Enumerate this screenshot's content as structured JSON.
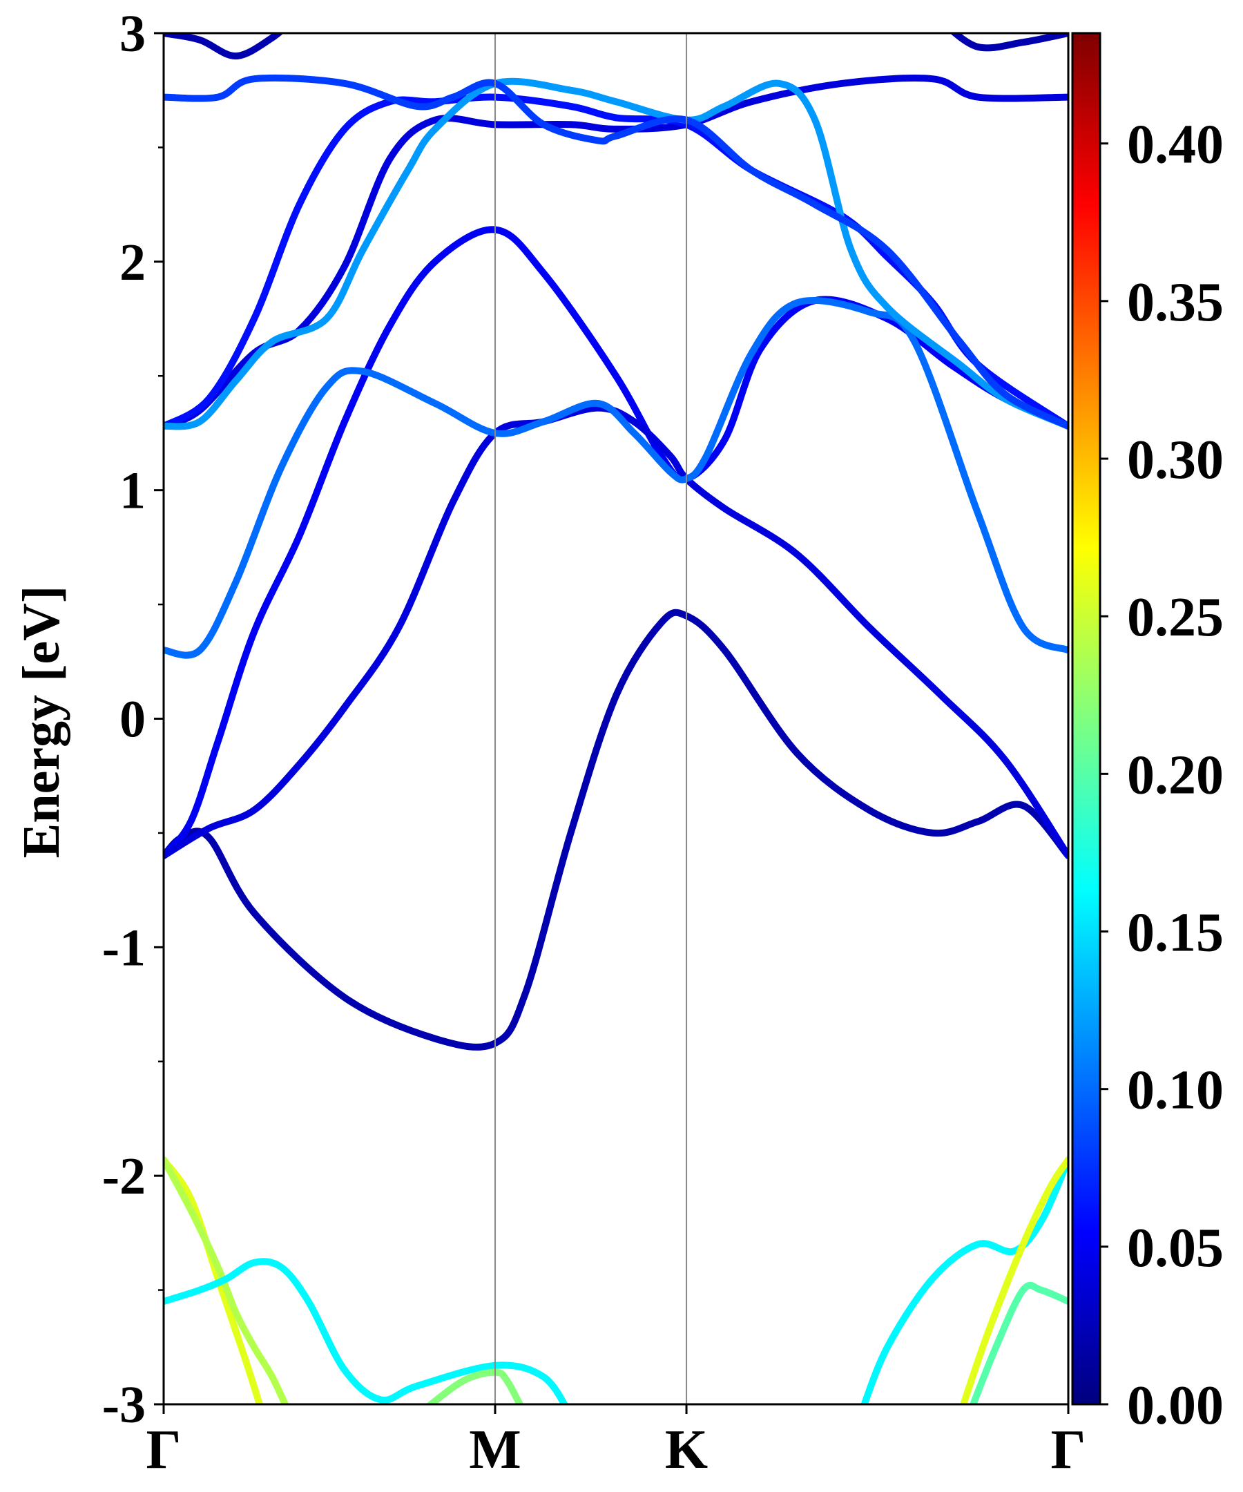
{
  "chart_data": {
    "type": "line",
    "title": "",
    "ylabel": "Energy [eV]",
    "xlabel": "",
    "ylim": [
      -3,
      3
    ],
    "xlim": [
      0,
      1
    ],
    "high_symmetry_points": [
      {
        "label": "Γ",
        "x": 0.0
      },
      {
        "label": "M",
        "x": 0.3664
      },
      {
        "label": "K",
        "x": 0.5779
      },
      {
        "label": "Γ",
        "x": 1.0
      }
    ],
    "yticks": [
      {
        "value": -3,
        "label": "-3"
      },
      {
        "value": -2,
        "label": "-2"
      },
      {
        "value": -1,
        "label": "-1"
      },
      {
        "value": 0,
        "label": "0"
      },
      {
        "value": 1,
        "label": "1"
      },
      {
        "value": 2,
        "label": "2"
      },
      {
        "value": 3,
        "label": "3"
      }
    ],
    "colorbar": {
      "colormap": "jet",
      "range": [
        0.0,
        0.435
      ],
      "ticks": [
        {
          "value": 0.0,
          "label": "0.00"
        },
        {
          "value": 0.05,
          "label": "0.05"
        },
        {
          "value": 0.1,
          "label": "0.10"
        },
        {
          "value": 0.15,
          "label": "0.15"
        },
        {
          "value": 0.2,
          "label": "0.20"
        },
        {
          "value": 0.25,
          "label": "0.25"
        },
        {
          "value": 0.3,
          "label": "0.30"
        },
        {
          "value": 0.35,
          "label": "0.35"
        },
        {
          "value": 0.4,
          "label": "0.40"
        }
      ]
    },
    "series": [
      {
        "weight": 0.02,
        "points": [
          [
            0.0,
            -0.6
          ],
          [
            0.02,
            -0.52
          ],
          [
            0.05,
            -0.52
          ],
          [
            0.1,
            -0.85
          ],
          [
            0.2,
            -1.22
          ],
          [
            0.3,
            -1.4
          ],
          [
            0.3664,
            -1.42
          ],
          [
            0.4,
            -1.2
          ],
          [
            0.45,
            -0.5
          ],
          [
            0.5,
            0.1
          ],
          [
            0.55,
            0.42
          ],
          [
            0.5779,
            0.45
          ],
          [
            0.62,
            0.3
          ],
          [
            0.7,
            -0.15
          ],
          [
            0.78,
            -0.4
          ],
          [
            0.85,
            -0.5
          ],
          [
            0.9,
            -0.45
          ],
          [
            0.95,
            -0.38
          ],
          [
            1.0,
            -0.6
          ]
        ]
      },
      {
        "weight": 0.05,
        "points": [
          [
            0.0,
            -0.6
          ],
          [
            0.03,
            -0.45
          ],
          [
            0.06,
            -0.1
          ],
          [
            0.1,
            0.38
          ],
          [
            0.15,
            0.8
          ],
          [
            0.2,
            1.3
          ],
          [
            0.25,
            1.72
          ],
          [
            0.3,
            2.0
          ],
          [
            0.3664,
            2.14
          ],
          [
            0.42,
            1.95
          ],
          [
            0.5,
            1.5
          ],
          [
            0.55,
            1.15
          ],
          [
            0.5779,
            1.05
          ],
          [
            0.62,
            1.22
          ],
          [
            0.66,
            1.62
          ],
          [
            0.72,
            1.83
          ],
          [
            0.8,
            1.75
          ],
          [
            0.87,
            1.55
          ],
          [
            0.93,
            1.4
          ],
          [
            1.0,
            1.28
          ]
        ]
      },
      {
        "weight": 0.04,
        "points": [
          [
            0.0,
            -0.6
          ],
          [
            0.05,
            -0.48
          ],
          [
            0.1,
            -0.4
          ],
          [
            0.15,
            -0.2
          ],
          [
            0.2,
            0.05
          ],
          [
            0.26,
            0.4
          ],
          [
            0.32,
            0.95
          ],
          [
            0.3664,
            1.25
          ],
          [
            0.42,
            1.3
          ],
          [
            0.48,
            1.36
          ],
          [
            0.52,
            1.3
          ],
          [
            0.56,
            1.15
          ],
          [
            0.5779,
            1.05
          ],
          [
            0.62,
            0.92
          ],
          [
            0.7,
            0.72
          ],
          [
            0.78,
            0.4
          ],
          [
            0.86,
            0.1
          ],
          [
            0.93,
            -0.18
          ],
          [
            1.0,
            -0.6
          ]
        ]
      },
      {
        "weight": 0.1,
        "points": [
          [
            0.0,
            0.3
          ],
          [
            0.04,
            0.3
          ],
          [
            0.08,
            0.6
          ],
          [
            0.13,
            1.1
          ],
          [
            0.18,
            1.45
          ],
          [
            0.22,
            1.52
          ],
          [
            0.3,
            1.38
          ],
          [
            0.3664,
            1.25
          ],
          [
            0.42,
            1.3
          ],
          [
            0.48,
            1.38
          ],
          [
            0.52,
            1.25
          ],
          [
            0.56,
            1.08
          ],
          [
            0.5779,
            1.05
          ],
          [
            0.6,
            1.15
          ],
          [
            0.65,
            1.6
          ],
          [
            0.7,
            1.82
          ],
          [
            0.78,
            1.78
          ],
          [
            0.83,
            1.65
          ],
          [
            0.9,
            0.9
          ],
          [
            0.95,
            0.4
          ],
          [
            1.0,
            0.3
          ]
        ]
      },
      {
        "weight": 0.04,
        "points": [
          [
            0.0,
            1.28
          ],
          [
            0.04,
            1.35
          ],
          [
            0.1,
            1.6
          ],
          [
            0.15,
            1.7
          ],
          [
            0.2,
            1.98
          ],
          [
            0.25,
            2.45
          ],
          [
            0.3,
            2.62
          ],
          [
            0.3664,
            2.6
          ],
          [
            0.45,
            2.6
          ],
          [
            0.5,
            2.58
          ],
          [
            0.5779,
            2.6
          ],
          [
            0.65,
            2.7
          ],
          [
            0.75,
            2.78
          ],
          [
            0.85,
            2.8
          ],
          [
            0.9,
            2.72
          ],
          [
            1.0,
            2.72
          ]
        ]
      },
      {
        "weight": 0.06,
        "points": [
          [
            0.0,
            1.28
          ],
          [
            0.05,
            1.4
          ],
          [
            0.1,
            1.75
          ],
          [
            0.15,
            2.25
          ],
          [
            0.2,
            2.58
          ],
          [
            0.25,
            2.7
          ],
          [
            0.3,
            2.7
          ],
          [
            0.3664,
            2.72
          ],
          [
            0.45,
            2.68
          ],
          [
            0.5,
            2.63
          ],
          [
            0.5779,
            2.6
          ],
          [
            0.65,
            2.4
          ],
          [
            0.75,
            2.2
          ],
          [
            0.8,
            2.02
          ],
          [
            0.85,
            1.82
          ],
          [
            0.9,
            1.55
          ],
          [
            1.0,
            1.28
          ]
        ]
      },
      {
        "weight": 0.12,
        "points": [
          [
            0.0,
            1.28
          ],
          [
            0.04,
            1.3
          ],
          [
            0.08,
            1.48
          ],
          [
            0.12,
            1.65
          ],
          [
            0.18,
            1.75
          ],
          [
            0.22,
            2.05
          ],
          [
            0.27,
            2.4
          ],
          [
            0.3,
            2.58
          ],
          [
            0.3664,
            2.78
          ],
          [
            0.45,
            2.75
          ],
          [
            0.5,
            2.7
          ],
          [
            0.5779,
            2.62
          ],
          [
            0.62,
            2.68
          ],
          [
            0.68,
            2.78
          ],
          [
            0.72,
            2.62
          ],
          [
            0.76,
            2.05
          ],
          [
            0.8,
            1.8
          ],
          [
            0.88,
            1.55
          ],
          [
            0.93,
            1.4
          ],
          [
            1.0,
            1.28
          ]
        ]
      },
      {
        "weight": 0.08,
        "points": [
          [
            0.0,
            2.72
          ],
          [
            0.06,
            2.72
          ],
          [
            0.1,
            2.8
          ],
          [
            0.2,
            2.78
          ],
          [
            0.28,
            2.68
          ],
          [
            0.32,
            2.72
          ],
          [
            0.3664,
            2.78
          ],
          [
            0.42,
            2.6
          ],
          [
            0.48,
            2.53
          ],
          [
            0.5,
            2.55
          ],
          [
            0.5779,
            2.62
          ],
          [
            0.65,
            2.4
          ],
          [
            0.72,
            2.25
          ],
          [
            0.8,
            2.05
          ],
          [
            0.88,
            1.65
          ],
          [
            0.93,
            1.42
          ],
          [
            1.0,
            1.28
          ]
        ]
      },
      {
        "weight": 0.02,
        "points": [
          [
            0.0,
            3.0
          ],
          [
            0.04,
            2.97
          ],
          [
            0.08,
            2.9
          ],
          [
            0.12,
            2.98
          ],
          [
            0.14,
            3.05
          ]
        ]
      },
      {
        "weight": 0.02,
        "points": [
          [
            0.86,
            3.05
          ],
          [
            0.9,
            2.94
          ],
          [
            0.95,
            2.96
          ],
          [
            1.0,
            3.0
          ]
        ]
      },
      {
        "weight": 0.26,
        "points": [
          [
            0.0,
            -1.93
          ],
          [
            0.03,
            -2.1
          ],
          [
            0.06,
            -2.45
          ],
          [
            0.09,
            -2.8
          ],
          [
            0.11,
            -3.05
          ]
        ]
      },
      {
        "weight": 0.24,
        "points": [
          [
            0.0,
            -1.93
          ],
          [
            0.03,
            -2.15
          ],
          [
            0.06,
            -2.4
          ],
          [
            0.08,
            -2.6
          ],
          [
            0.1,
            -2.75
          ],
          [
            0.12,
            -2.88
          ],
          [
            0.14,
            -3.05
          ]
        ]
      },
      {
        "weight": 0.16,
        "points": [
          [
            0.0,
            -2.55
          ],
          [
            0.04,
            -2.5
          ],
          [
            0.07,
            -2.45
          ],
          [
            0.1,
            -2.38
          ],
          [
            0.13,
            -2.4
          ],
          [
            0.16,
            -2.55
          ],
          [
            0.2,
            -2.85
          ],
          [
            0.24,
            -2.98
          ],
          [
            0.28,
            -2.92
          ],
          [
            0.3664,
            -2.83
          ],
          [
            0.42,
            -2.88
          ],
          [
            0.45,
            -3.05
          ]
        ]
      },
      {
        "weight": 0.22,
        "points": [
          [
            0.28,
            -3.05
          ],
          [
            0.33,
            -2.9
          ],
          [
            0.3664,
            -2.86
          ],
          [
            0.38,
            -2.9
          ],
          [
            0.4,
            -3.05
          ]
        ]
      },
      {
        "weight": 0.16,
        "points": [
          [
            0.77,
            -3.05
          ],
          [
            0.8,
            -2.75
          ],
          [
            0.85,
            -2.45
          ],
          [
            0.9,
            -2.3
          ],
          [
            0.94,
            -2.33
          ],
          [
            0.97,
            -2.2
          ],
          [
            1.0,
            -1.93
          ]
        ]
      },
      {
        "weight": 0.26,
        "points": [
          [
            0.88,
            -3.05
          ],
          [
            0.91,
            -2.7
          ],
          [
            0.95,
            -2.3
          ],
          [
            0.98,
            -2.05
          ],
          [
            1.0,
            -1.93
          ]
        ]
      },
      {
        "weight": 0.2,
        "points": [
          [
            0.89,
            -3.05
          ],
          [
            0.92,
            -2.75
          ],
          [
            0.95,
            -2.5
          ],
          [
            0.97,
            -2.5
          ],
          [
            1.0,
            -2.55
          ]
        ]
      }
    ]
  }
}
